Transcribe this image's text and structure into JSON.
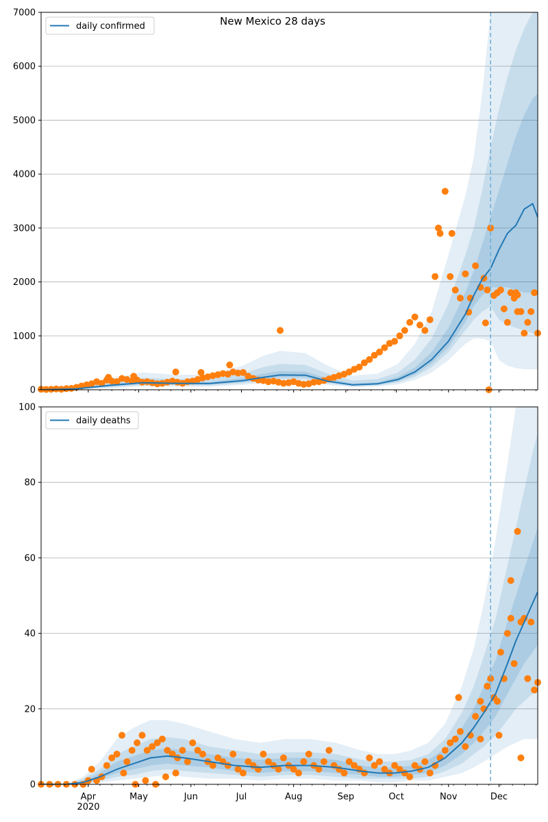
{
  "figure": {
    "title": "New Mexico 28 days"
  },
  "chart_data": [
    {
      "type": "line",
      "panel": "top",
      "legend": {
        "label": "daily confirmed",
        "placement": "top-left"
      },
      "ylim": [
        0,
        7000
      ],
      "yticks": [
        0,
        1000,
        2000,
        3000,
        4000,
        5000,
        6000,
        7000
      ],
      "xlim_days": [
        0,
        295
      ],
      "grid": "horizontal",
      "forecast_start_day": 267,
      "line_color": "#1f77b4",
      "band_color": "#1f77b4",
      "point_color": "#ff7f0e",
      "line": {
        "days": [
          0,
          20,
          40,
          60,
          80,
          100,
          120,
          132,
          142,
          157,
          170,
          185,
          200,
          212,
          222,
          232,
          242,
          252,
          257,
          262,
          267,
          272,
          277,
          282,
          287,
          292,
          295
        ],
        "values": [
          0,
          15,
          80,
          130,
          120,
          115,
          170,
          230,
          275,
          270,
          160,
          90,
          110,
          190,
          330,
          560,
          900,
          1400,
          1750,
          2050,
          2250,
          2600,
          2900,
          3050,
          3350,
          3450,
          3200
        ]
      },
      "bands": [
        {
          "level": "outer",
          "lower": [
            0,
            5,
            30,
            60,
            60,
            55,
            90,
            120,
            150,
            150,
            90,
            50,
            60,
            100,
            180,
            320,
            550,
            850,
            950,
            950,
            900,
            550,
            450,
            400,
            380,
            380,
            380
          ],
          "upper": [
            0,
            40,
            200,
            320,
            280,
            280,
            450,
            630,
            720,
            680,
            450,
            260,
            300,
            480,
            850,
            1450,
            2500,
            3600,
            4300,
            5500,
            7000,
            7000,
            7000,
            7000,
            7000,
            7000,
            7000
          ]
        },
        {
          "level": "middle",
          "lower": [
            0,
            8,
            45,
            85,
            85,
            80,
            120,
            165,
            200,
            195,
            120,
            65,
            80,
            135,
            240,
            420,
            700,
            1100,
            1300,
            1450,
            1550,
            1300,
            1200,
            1150,
            1100,
            1050,
            1000
          ],
          "upper": [
            0,
            28,
            140,
            220,
            200,
            195,
            300,
            420,
            480,
            460,
            300,
            170,
            200,
            320,
            560,
            950,
            1600,
            2500,
            3000,
            3700,
            4500,
            5200,
            5800,
            6300,
            6700,
            7000,
            7000
          ]
        },
        {
          "level": "inner",
          "lower": [
            0,
            11,
            60,
            105,
            100,
            95,
            145,
            195,
            235,
            230,
            140,
            78,
            95,
            160,
            280,
            490,
            790,
            1250,
            1550,
            1750,
            1900,
            1900,
            1900,
            1850,
            1800,
            1800,
            1800
          ],
          "upper": [
            0,
            20,
            105,
            165,
            150,
            145,
            220,
            300,
            345,
            335,
            210,
            120,
            140,
            240,
            410,
            700,
            1150,
            1800,
            2200,
            2700,
            3200,
            3700,
            4200,
            4700,
            5100,
            5400,
            5500
          ]
        }
      ],
      "observed": {
        "days": [
          0,
          3,
          6,
          9,
          12,
          15,
          18,
          21,
          24,
          27,
          30,
          33,
          36,
          39,
          42,
          45,
          48,
          51,
          54,
          57,
          60,
          63,
          66,
          69,
          72,
          75,
          78,
          81,
          84,
          87,
          90,
          93,
          96,
          99,
          102,
          105,
          108,
          111,
          114,
          117,
          120,
          123,
          126,
          129,
          132,
          135,
          138,
          141,
          144,
          147,
          150,
          153,
          156,
          159,
          162,
          165,
          168,
          171,
          174,
          177,
          180,
          183,
          186,
          189,
          192,
          195,
          198,
          201,
          204,
          207,
          210,
          213,
          216,
          219,
          222,
          225,
          228,
          231,
          234,
          237,
          240,
          243,
          246,
          249,
          252,
          255,
          258,
          261,
          263,
          265,
          267,
          269,
          271,
          273,
          275,
          277,
          279,
          281,
          283,
          285,
          287,
          289,
          291,
          293,
          295,
          40,
          55,
          80,
          95,
          112,
          142,
          236,
          244,
          254,
          264,
          266,
          283,
          282
        ],
        "values": [
          10,
          5,
          10,
          15,
          10,
          20,
          25,
          45,
          70,
          90,
          110,
          150,
          120,
          180,
          160,
          150,
          210,
          190,
          160,
          180,
          140,
          150,
          130,
          110,
          120,
          140,
          160,
          140,
          120,
          150,
          160,
          190,
          220,
          240,
          260,
          280,
          300,
          290,
          330,
          310,
          320,
          250,
          210,
          180,
          170,
          150,
          160,
          140,
          120,
          130,
          150,
          120,
          100,
          110,
          140,
          150,
          170,
          200,
          230,
          260,
          290,
          330,
          380,
          420,
          500,
          560,
          640,
          700,
          780,
          860,
          900,
          1000,
          1100,
          1250,
          1350,
          1200,
          1100,
          1300,
          2100,
          2900,
          3680,
          2100,
          1850,
          1700,
          2150,
          1700,
          2300,
          1900,
          2070,
          1850,
          3000,
          1750,
          1800,
          1850,
          1500,
          1250,
          1800,
          1700,
          1450,
          1450,
          1050,
          1250,
          1450,
          1800,
          1050,
          230,
          250,
          330,
          320,
          460,
          1100,
          3000,
          2900,
          1440,
          1240,
          0,
          1760,
          1800
        ]
      }
    },
    {
      "type": "line",
      "panel": "bottom",
      "legend": {
        "label": "daily deaths",
        "placement": "top-left"
      },
      "ylim": [
        0,
        100
      ],
      "yticks": [
        0,
        20,
        40,
        60,
        80,
        100
      ],
      "xlim_days": [
        0,
        295
      ],
      "grid": "horizontal",
      "forecast_start_day": 267,
      "x_ticks": [
        {
          "day": 28,
          "label": "Apr"
        },
        {
          "day": 58,
          "label": "May"
        },
        {
          "day": 89,
          "label": "Jun"
        },
        {
          "day": 119,
          "label": "Jul"
        },
        {
          "day": 150,
          "label": "Aug"
        },
        {
          "day": 181,
          "label": "Sep"
        },
        {
          "day": 211,
          "label": "Oct"
        },
        {
          "day": 242,
          "label": "Nov"
        },
        {
          "day": 272,
          "label": "Dec"
        }
      ],
      "x_year_label": "2020",
      "line_color": "#1f77b4",
      "band_color": "#1f77b4",
      "point_color": "#ff7f0e",
      "line": {
        "days": [
          0,
          15,
          25,
          35,
          45,
          55,
          65,
          75,
          85,
          100,
          115,
          130,
          145,
          160,
          175,
          190,
          200,
          210,
          220,
          230,
          240,
          250,
          257,
          263,
          270,
          277,
          282,
          287,
          292,
          295
        ],
        "values": [
          0,
          0,
          0.5,
          2,
          4,
          5.5,
          7,
          7.5,
          7,
          6,
          5,
          4.5,
          5,
          5,
          4.5,
          3.5,
          3,
          3,
          3.5,
          4.5,
          7,
          11,
          15,
          19,
          24,
          32,
          38,
          43,
          48,
          51
        ]
      },
      "bands": [
        {
          "level": "outer",
          "lower": [
            0,
            0,
            0,
            0.5,
            1,
            1.5,
            2,
            2.5,
            2,
            1.5,
            1.5,
            1,
            1.5,
            1.5,
            1,
            1,
            0.5,
            0.5,
            1,
            1,
            2,
            3,
            4.5,
            6,
            8,
            10,
            11,
            12,
            12,
            12
          ],
          "upper": [
            0,
            0,
            2,
            6,
            12,
            15,
            17,
            17,
            16,
            14,
            12,
            11,
            12,
            12,
            11,
            9,
            8,
            8,
            9,
            11,
            16,
            26,
            36,
            48,
            65,
            85,
            100,
            100,
            100,
            100
          ]
        },
        {
          "level": "middle",
          "lower": [
            0,
            0,
            0,
            1,
            2,
            2.5,
            3.5,
            4,
            3.5,
            3,
            2.5,
            2,
            2.5,
            2.5,
            2,
            1.5,
            1.5,
            1.5,
            1.5,
            2,
            3.5,
            5.5,
            8,
            10,
            13,
            17,
            20,
            22,
            24,
            25
          ],
          "upper": [
            0,
            0,
            1.5,
            4,
            8,
            10,
            12,
            12.5,
            12,
            10,
            9,
            8,
            8.5,
            8.5,
            8,
            6.5,
            6,
            6,
            6.5,
            8,
            12,
            19,
            26,
            34,
            44,
            58,
            68,
            78,
            88,
            93
          ]
        },
        {
          "level": "inner",
          "lower": [
            0,
            0,
            0,
            1.5,
            3,
            4,
            5,
            5.5,
            5,
            4.5,
            3.5,
            3,
            3.5,
            3.5,
            3,
            2.5,
            2,
            2,
            2.5,
            3,
            5,
            8,
            11,
            14,
            18,
            24,
            28,
            32,
            35,
            37
          ],
          "upper": [
            0,
            0,
            1,
            3,
            6,
            7.5,
            9,
            9.5,
            9,
            8,
            7,
            6.5,
            7,
            7,
            6.5,
            5,
            4.5,
            4.5,
            5,
            6.5,
            9.5,
            15,
            20,
            26,
            33,
            43,
            50,
            57,
            64,
            68
          ]
        }
      ],
      "observed": {
        "days": [
          0,
          5,
          10,
          15,
          20,
          25,
          28,
          30,
          33,
          36,
          39,
          42,
          45,
          48,
          51,
          54,
          57,
          60,
          63,
          66,
          69,
          72,
          75,
          78,
          81,
          84,
          87,
          90,
          93,
          96,
          99,
          102,
          105,
          108,
          111,
          114,
          117,
          120,
          123,
          126,
          129,
          132,
          135,
          138,
          141,
          144,
          147,
          150,
          153,
          156,
          159,
          162,
          165,
          168,
          171,
          174,
          177,
          180,
          183,
          186,
          189,
          192,
          195,
          198,
          201,
          204,
          207,
          210,
          213,
          216,
          219,
          222,
          225,
          228,
          231,
          234,
          237,
          240,
          243,
          246,
          249,
          252,
          255,
          258,
          261,
          263,
          265,
          267,
          269,
          271,
          273,
          275,
          277,
          279,
          281,
          283,
          285,
          287,
          289,
          291,
          293,
          295,
          49,
          56,
          62,
          68,
          74,
          80,
          248,
          261,
          272,
          285,
          279
        ],
        "values": [
          0,
          0,
          0,
          0,
          0,
          0,
          1,
          4,
          1,
          2,
          5,
          7,
          8,
          13,
          6,
          9,
          11,
          13,
          9,
          10,
          11,
          12,
          9,
          8,
          7,
          9,
          6,
          11,
          9,
          8,
          6,
          5,
          7,
          6,
          5,
          8,
          4,
          3,
          6,
          5,
          4,
          8,
          6,
          5,
          4,
          7,
          5,
          4,
          3,
          6,
          8,
          5,
          4,
          6,
          9,
          5,
          4,
          3,
          6,
          5,
          4,
          3,
          7,
          5,
          6,
          4,
          3,
          5,
          4,
          3,
          2,
          5,
          4,
          6,
          3,
          5,
          7,
          9,
          11,
          12,
          14,
          10,
          13,
          18,
          22,
          20,
          26,
          28,
          23,
          22,
          35,
          28,
          40,
          44,
          32,
          67,
          43,
          44,
          28,
          43,
          25,
          27,
          3,
          0,
          1,
          0,
          2,
          3,
          23,
          12,
          13,
          7,
          54
        ]
      }
    }
  ]
}
